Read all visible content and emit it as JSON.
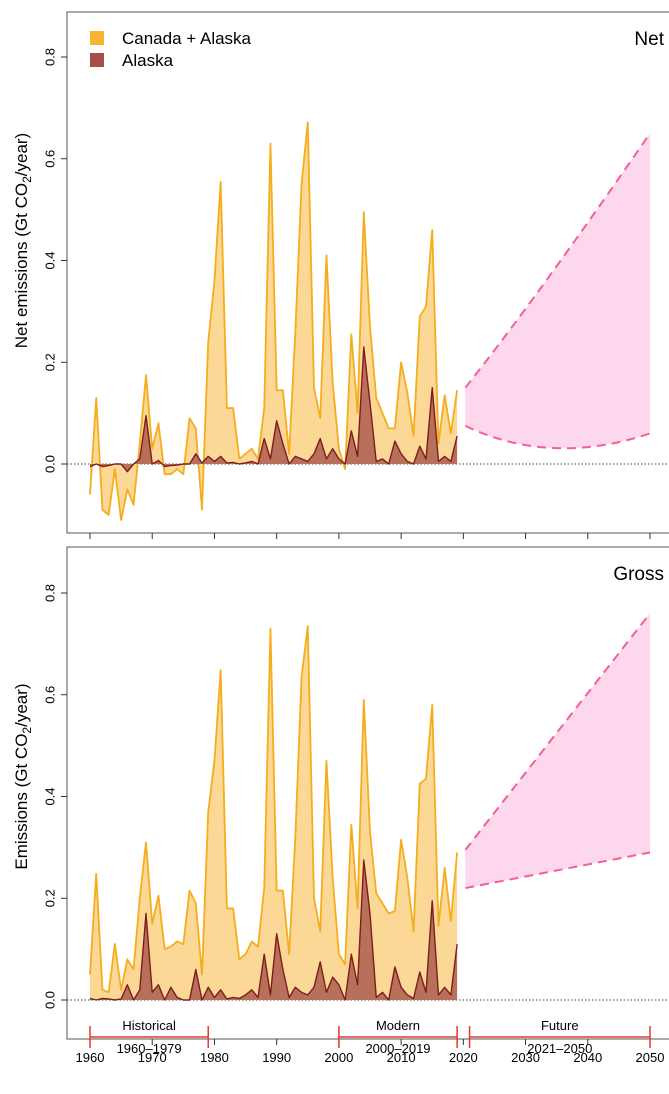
{
  "chart_data": {
    "type": "area",
    "legend": {
      "placement": "top-left",
      "entries": [
        {
          "label": "Canada + Alaska",
          "color": "#f5b733"
        },
        {
          "label": "Alaska",
          "color": "#a64e4a"
        }
      ]
    },
    "x_ticks": [
      1960,
      1970,
      1980,
      1990,
      2000,
      2010,
      2020,
      2030,
      2040,
      2050
    ],
    "xlim": [
      1960,
      2050
    ],
    "colors": {
      "canada_fill": "#fcd896",
      "canada_line": "#f5ad1d",
      "alaska_fill": "#b8705a",
      "alaska_line": "#7d1d1d",
      "future_fill": "#fdd7ec",
      "future_line": "#f0609e",
      "period_line": "#e5382d"
    },
    "panels": [
      {
        "label": "Net",
        "ylabel_main": "Net emissions (Gt CO",
        "ylabel_sub": "2",
        "ylabel_end": "/year)",
        "ylim": [
          -0.14,
          0.9
        ],
        "y_ticks": [
          "0.0",
          "0.2",
          "0.4",
          "0.6",
          "0.8"
        ],
        "zero_line": true,
        "x": [
          1960,
          1961,
          1962,
          1963,
          1964,
          1965,
          1966,
          1967,
          1968,
          1969,
          1970,
          1971,
          1972,
          1973,
          1974,
          1975,
          1976,
          1977,
          1978,
          1979,
          1980,
          1981,
          1982,
          1983,
          1984,
          1985,
          1986,
          1987,
          1988,
          1989,
          1990,
          1991,
          1992,
          1993,
          1994,
          1995,
          1996,
          1997,
          1998,
          1999,
          2000,
          2001,
          2002,
          2003,
          2004,
          2005,
          2006,
          2007,
          2008,
          2009,
          2010,
          2011,
          2012,
          2013,
          2014,
          2015,
          2016,
          2017,
          2018,
          2019
        ],
        "series": [
          {
            "name": "Canada + Alaska",
            "values": [
              -0.06,
              0.13,
              -0.09,
              -0.1,
              -0.01,
              -0.11,
              -0.05,
              -0.08,
              0.04,
              0.175,
              0.03,
              0.08,
              -0.02,
              -0.02,
              -0.01,
              -0.02,
              0.09,
              0.07,
              -0.09,
              0.24,
              0.36,
              0.555,
              0.11,
              0.11,
              0.01,
              0.02,
              0.03,
              0.01,
              0.11,
              0.63,
              0.145,
              0.145,
              0.02,
              0.26,
              0.55,
              0.672,
              0.15,
              0.09,
              0.41,
              0.16,
              0.03,
              -0.01,
              0.255,
              0.1,
              0.495,
              0.27,
              0.13,
              0.1,
              0.07,
              0.07,
              0.2,
              0.14,
              0.055,
              0.29,
              0.31,
              0.46,
              0.04,
              0.135,
              0.06,
              0.145
            ]
          },
          {
            "name": "Alaska",
            "values": [
              -0.005,
              0.0,
              -0.005,
              -0.003,
              0.0,
              0.0,
              -0.015,
              0.0,
              0.01,
              0.095,
              0.0,
              0.007,
              -0.005,
              -0.003,
              -0.002,
              0.0,
              0.0,
              0.02,
              0.002,
              0.015,
              0.005,
              0.015,
              0.002,
              0.003,
              0.0,
              0.002,
              0.005,
              0.0,
              0.05,
              0.01,
              0.085,
              0.04,
              0.0,
              0.015,
              0.01,
              0.005,
              0.02,
              0.05,
              0.01,
              0.03,
              0.01,
              0.0,
              0.065,
              0.015,
              0.23,
              0.12,
              0.005,
              0.01,
              0.0,
              0.045,
              0.02,
              0.005,
              0.0,
              0.035,
              0.01,
              0.15,
              0.005,
              0.015,
              0.005,
              0.055
            ]
          }
        ],
        "future": {
          "x": [
            2020,
            2050
          ],
          "upper": [
            0.15,
            0.65
          ],
          "lower": [
            0.075,
            0.06
          ],
          "lower_min": {
            "x": 2035,
            "y": 0.035
          }
        }
      },
      {
        "label": "Gross",
        "ylabel_main": "Emissions (Gt CO",
        "ylabel_sub": "2",
        "ylabel_end": "/year)",
        "ylim": [
          -0.14,
          0.9
        ],
        "y_ticks": [
          "0.0",
          "0.2",
          "0.4",
          "0.6",
          "0.8"
        ],
        "zero_line": true,
        "x": [
          1960,
          1961,
          1962,
          1963,
          1964,
          1965,
          1966,
          1967,
          1968,
          1969,
          1970,
          1971,
          1972,
          1973,
          1974,
          1975,
          1976,
          1977,
          1978,
          1979,
          1980,
          1981,
          1982,
          1983,
          1984,
          1985,
          1986,
          1987,
          1988,
          1989,
          1990,
          1991,
          1992,
          1993,
          1994,
          1995,
          1996,
          1997,
          1998,
          1999,
          2000,
          2001,
          2002,
          2003,
          2004,
          2005,
          2006,
          2007,
          2008,
          2009,
          2010,
          2011,
          2012,
          2013,
          2014,
          2015,
          2016,
          2017,
          2018,
          2019
        ],
        "series": [
          {
            "name": "Canada + Alaska",
            "values": [
              0.05,
              0.248,
              0.02,
              0.015,
              0.11,
              0.02,
              0.08,
              0.06,
              0.2,
              0.31,
              0.15,
              0.205,
              0.1,
              0.105,
              0.115,
              0.11,
              0.215,
              0.19,
              0.05,
              0.37,
              0.47,
              0.648,
              0.18,
              0.18,
              0.08,
              0.09,
              0.115,
              0.105,
              0.22,
              0.73,
              0.215,
              0.215,
              0.09,
              0.32,
              0.635,
              0.735,
              0.2,
              0.135,
              0.47,
              0.24,
              0.09,
              0.07,
              0.345,
              0.18,
              0.59,
              0.33,
              0.21,
              0.19,
              0.17,
              0.175,
              0.315,
              0.24,
              0.135,
              0.425,
              0.435,
              0.58,
              0.145,
              0.26,
              0.155,
              0.29
            ]
          },
          {
            "name": "Alaska",
            "values": [
              0.003,
              0.0,
              0.003,
              0.002,
              0.0,
              0.002,
              0.03,
              0.0,
              0.02,
              0.17,
              0.015,
              0.03,
              0.0,
              0.025,
              0.005,
              0.0,
              0.0,
              0.06,
              0.0,
              0.025,
              0.005,
              0.02,
              0.002,
              0.005,
              0.003,
              0.01,
              0.02,
              0.005,
              0.09,
              0.01,
              0.13,
              0.06,
              0.005,
              0.025,
              0.015,
              0.01,
              0.025,
              0.075,
              0.015,
              0.045,
              0.03,
              0.0,
              0.09,
              0.03,
              0.275,
              0.17,
              0.005,
              0.015,
              0.0,
              0.065,
              0.025,
              0.01,
              0.003,
              0.055,
              0.015,
              0.195,
              0.01,
              0.025,
              0.01,
              0.11
            ]
          }
        ],
        "future": {
          "x": [
            2020,
            2050
          ],
          "upper": [
            0.295,
            0.76
          ],
          "lower": [
            0.22,
            0.29
          ]
        }
      }
    ],
    "periods": [
      {
        "name": "Historical",
        "range": "1960–1979",
        "start": 1960,
        "end": 1979
      },
      {
        "name": "Modern",
        "range": "2000–2019",
        "start": 2000,
        "end": 2019
      },
      {
        "name": "Future",
        "range": "2021–2050",
        "start": 2021,
        "end": 2050
      }
    ]
  }
}
